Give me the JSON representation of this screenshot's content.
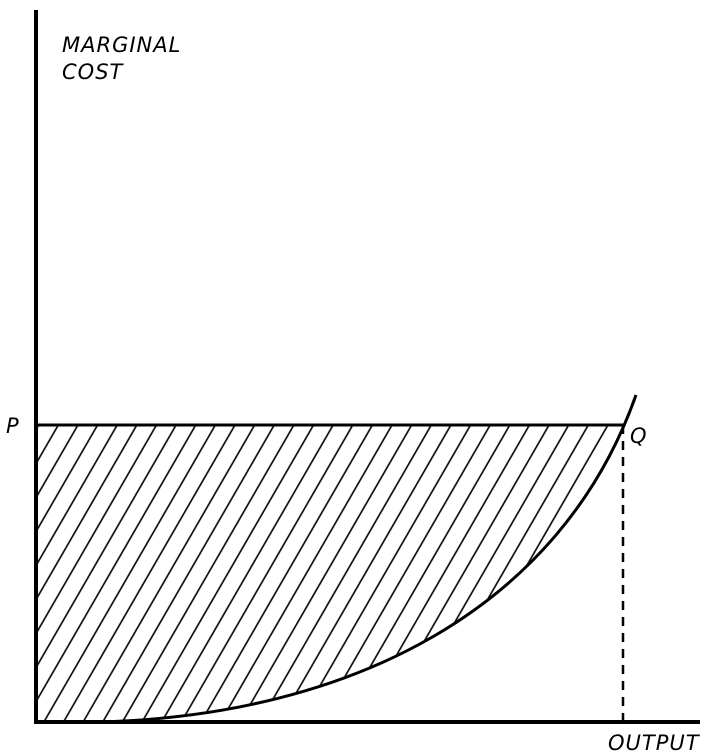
{
  "y_axis_label": [
    "MARGINAL",
    "COST"
  ],
  "points": {
    "p": "P",
    "q": "Q"
  },
  "x_axis_label": "OUTPUT"
}
